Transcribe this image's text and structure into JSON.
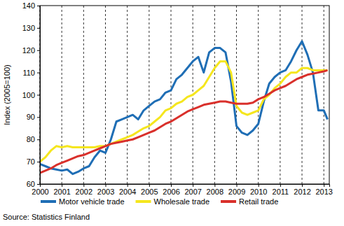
{
  "chart_data": {
    "type": "line",
    "y_label": "Index (2005=100)",
    "source": "Source: Statistics Finland",
    "x": [
      2000,
      2000.25,
      2000.5,
      2000.75,
      2001,
      2001.25,
      2001.5,
      2001.75,
      2002,
      2002.25,
      2002.5,
      2002.75,
      2003,
      2003.25,
      2003.5,
      2003.75,
      2004,
      2004.25,
      2004.5,
      2004.75,
      2005,
      2005.25,
      2005.5,
      2005.75,
      2006,
      2006.25,
      2006.5,
      2006.75,
      2007,
      2007.25,
      2007.5,
      2007.75,
      2008,
      2008.25,
      2008.5,
      2008.75,
      2009,
      2009.25,
      2009.5,
      2009.75,
      2010,
      2010.25,
      2010.5,
      2010.75,
      2011,
      2011.25,
      2011.5,
      2011.75,
      2012,
      2012.25,
      2012.5,
      2012.75,
      2013,
      2013.17
    ],
    "series": [
      {
        "name": "Motor vehicle trade",
        "color": "#1f6eb5",
        "values": [
          69,
          68,
          67,
          66.5,
          66,
          66.5,
          64.5,
          65.5,
          67,
          68,
          72,
          75,
          74,
          80,
          88,
          89,
          90,
          91,
          89,
          93,
          95,
          97,
          98,
          101,
          102,
          107,
          109,
          112,
          115,
          117,
          110,
          119,
          121,
          121,
          119,
          106,
          86,
          83,
          82,
          84,
          87,
          97,
          105,
          108,
          110,
          111,
          115,
          120,
          124,
          118,
          110,
          93,
          93,
          89
        ]
      },
      {
        "name": "Wholesale trade",
        "color": "#f5e61e",
        "values": [
          70,
          72,
          75,
          77,
          76.5,
          77,
          76.5,
          76.5,
          76.5,
          76.5,
          76.5,
          77,
          77,
          78,
          79,
          80,
          81,
          82,
          83.5,
          85,
          86,
          88,
          90,
          93,
          94,
          96,
          97,
          99,
          100,
          102,
          104,
          108,
          112,
          115,
          115,
          110,
          95,
          92,
          91,
          92,
          93,
          98,
          100,
          103,
          105,
          108,
          110,
          110,
          112,
          112,
          111,
          111,
          111,
          111
        ]
      },
      {
        "name": "Retail trade",
        "color": "#d9302b",
        "values": [
          65,
          66,
          67,
          68.5,
          69.5,
          70.5,
          71.5,
          72.5,
          73,
          74,
          75,
          76,
          77,
          78,
          78.5,
          79,
          79.5,
          80,
          81,
          82,
          83,
          84,
          85.5,
          87,
          88,
          89.5,
          91,
          92.5,
          93.5,
          94.5,
          95.5,
          96,
          96.5,
          97,
          97,
          96.5,
          96,
          96,
          96,
          96.5,
          98,
          99,
          100.5,
          102,
          103,
          104,
          105.5,
          107,
          108,
          109,
          109.5,
          110,
          110.5,
          111
        ]
      }
    ],
    "xlim": [
      2000,
      2013.25
    ],
    "xticks": [
      2000,
      2001,
      2002,
      2003,
      2004,
      2005,
      2006,
      2007,
      2008,
      2009,
      2010,
      2011,
      2012,
      2013
    ],
    "ylim": [
      60,
      140
    ],
    "yticks": [
      60,
      70,
      80,
      90,
      100,
      110,
      120,
      130,
      140
    ],
    "grid": "x",
    "legend": "bottom"
  }
}
